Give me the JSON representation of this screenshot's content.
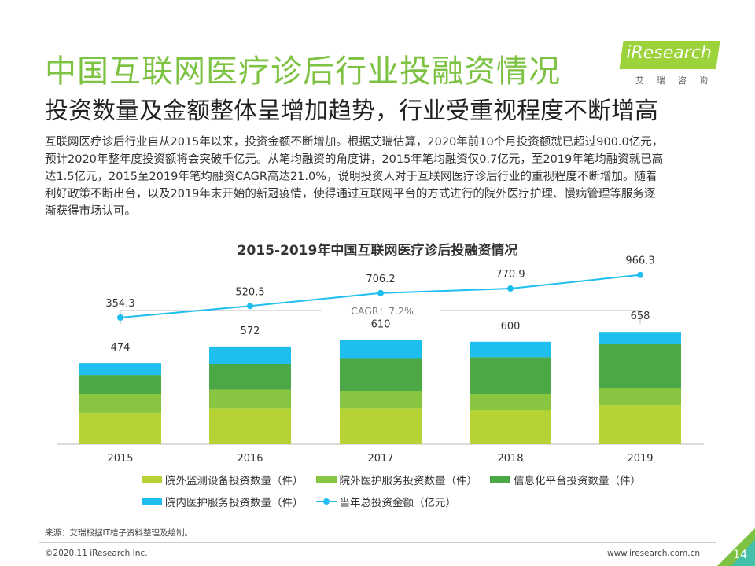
{
  "header": {
    "title": "中国互联网医疗诊后行业投融资情况",
    "subtitle": "投资数量及金额整体呈增加趋势，行业受重视程度不断增高",
    "logo_text": "iResearch",
    "logo_sub": "艾瑞咨询"
  },
  "body": {
    "lines": [
      "互联网医疗诊后行业自从2015年以来，投资金额不断增加。根据艾瑞估算，2020年前10个月投资额就已超过900.0亿元，",
      "预计2020年整年度投资额将会突破千亿元。从笔均融资的角度讲，2015年笔均融资仅0.7亿元，至2019年笔均融资就已高",
      "达1.5亿元，2015至2019年笔均融资CAGR高达21.0%，说明投资人对于互联网医疗诊后行业的重视程度不断增加。随着",
      "利好政策不断出台，以及2019年末开始的新冠疫情，使得通过互联网平台的方式进行的院外医疗护理、慢病管理等服务逐",
      "渐获得市场认可。"
    ]
  },
  "chart_data": {
    "type": "bar",
    "title": "2015-2019年中国互联网医疗诊后投融资情况",
    "categories": [
      "2015",
      "2016",
      "2017",
      "2018",
      "2019"
    ],
    "stack_totals": [
      474,
      572,
      610,
      600,
      658
    ],
    "series": [
      {
        "name": "院外监测设备投资数量（件）",
        "color": "#b5d334",
        "values": [
          185,
          210,
          210,
          200,
          230
        ]
      },
      {
        "name": "院外医护服务投资数量（件）",
        "color": "#88c540",
        "values": [
          110,
          110,
          100,
          95,
          100
        ]
      },
      {
        "name": "信息化平台投资数量（件）",
        "color": "#4ca746",
        "values": [
          110,
          150,
          190,
          215,
          260
        ]
      },
      {
        "name": "院内医护服务投资数量（件）",
        "color": "#1ebeee",
        "values": [
          69,
          102,
          110,
          90,
          68
        ]
      }
    ],
    "line_series": {
      "name": "当年总投资金额（亿元）",
      "color": "#1ebeee",
      "values": [
        354.3,
        520.5,
        706.2,
        770.9,
        966.3
      ]
    },
    "annotation": "CAGR：7.2%"
  },
  "footer": {
    "source": "来源：艾瑞根据IT桔子资料整理及绘制。",
    "copyright": "©2020.11 iResearch Inc.",
    "website": "www.iresearch.com.cn",
    "page": "14"
  }
}
